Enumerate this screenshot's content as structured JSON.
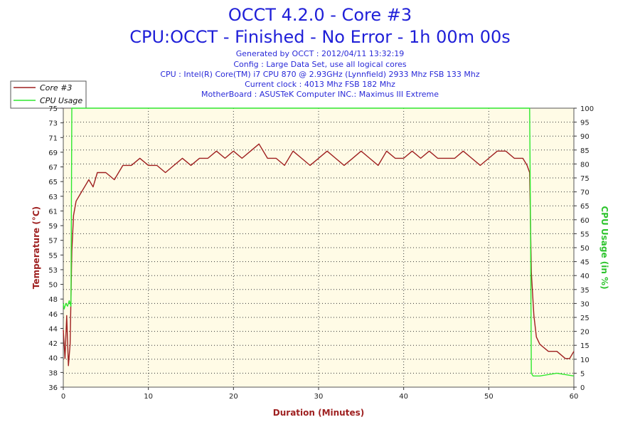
{
  "header": {
    "title": "OCCT 4.2.0 - Core #3",
    "subtitle": "CPU:OCCT - Finished - No Error - 1h 00m 00s",
    "info_lines": [
      "Generated by OCCT : 2012/04/11 13:32:19",
      "Config : Large Data Set, use all logical cores",
      "CPU : Intel(R) Core(TM) i7 CPU 870 @ 2.93GHz (Lynnfield) 2933 Mhz FSB 133 Mhz",
      "Current clock : 4013 Mhz FSB 182 Mhz",
      "MotherBoard : ASUSTeK Computer INC.: Maximus III Extreme"
    ]
  },
  "colors": {
    "temperature": "#9e1f1f",
    "usage": "#2ee82e",
    "plot_background": "#fffbe6",
    "title": "#1f1fd8"
  },
  "chart_data": {
    "type": "line",
    "xlabel": "Duration (Minutes)",
    "ylabel": "Temperature (°C)",
    "y2label": "CPU Usage (in %)",
    "xlim": [
      0,
      60
    ],
    "ylim": [
      36,
      75
    ],
    "y2lim": [
      0,
      100
    ],
    "x_ticks": [
      "0",
      "10",
      "20",
      "30",
      "40",
      "50",
      "60"
    ],
    "y_ticks": [
      "36",
      "38",
      "40",
      "42",
      "44",
      "46",
      "48",
      "50",
      "53",
      "55",
      "57",
      "59",
      "61",
      "63",
      "65",
      "67",
      "69",
      "71",
      "73",
      "75"
    ],
    "y2_ticks": [
      "0",
      "5",
      "10",
      "15",
      "20",
      "25",
      "30",
      "35",
      "40",
      "45",
      "50",
      "55",
      "60",
      "65",
      "70",
      "75",
      "80",
      "85",
      "90",
      "95",
      "100"
    ],
    "grid": true,
    "legend_position": "top-left",
    "series": [
      {
        "name": "Core #3",
        "axis": "left",
        "x": [
          0,
          0.2,
          0.4,
          0.6,
          0.8,
          1.0,
          1.2,
          1.5,
          2,
          2.5,
          3,
          3.5,
          4,
          5,
          6,
          7,
          8,
          9,
          10,
          11,
          12,
          13,
          14,
          15,
          16,
          17,
          18,
          19,
          20,
          21,
          22,
          23,
          24,
          25,
          26,
          27,
          28,
          29,
          30,
          31,
          32,
          33,
          34,
          35,
          36,
          37,
          38,
          39,
          40,
          41,
          42,
          43,
          44,
          45,
          46,
          47,
          48,
          49,
          50,
          51,
          52,
          53,
          54,
          54.5,
          54.8,
          55.0,
          55.3,
          55.6,
          56,
          57,
          58,
          59,
          59.5,
          60
        ],
        "y": [
          44,
          40,
          46,
          39,
          42,
          55,
          60,
          62,
          63,
          64,
          65,
          64,
          66,
          66,
          65,
          67,
          67,
          68,
          67,
          67,
          66,
          67,
          68,
          67,
          68,
          68,
          69,
          68,
          69,
          68,
          69,
          70,
          68,
          68,
          67,
          69,
          68,
          67,
          68,
          69,
          68,
          67,
          68,
          69,
          68,
          67,
          69,
          68,
          68,
          69,
          68,
          69,
          68,
          68,
          68,
          69,
          68,
          67,
          68,
          69,
          69,
          68,
          68,
          67,
          66,
          52,
          46,
          43,
          42,
          41,
          41,
          40,
          40,
          41
        ]
      },
      {
        "name": "CPU Usage",
        "axis": "right",
        "x": [
          0,
          0.1,
          0.3,
          0.5,
          0.7,
          0.9,
          1.0,
          1.1,
          1.2,
          30,
          54.5,
          54.8,
          54.9,
          55.0,
          55.2,
          56,
          58,
          60
        ],
        "y": [
          30,
          28,
          30,
          29,
          31,
          29,
          100,
          100,
          100,
          100,
          100,
          100,
          60,
          5,
          4,
          4,
          5,
          4
        ]
      }
    ]
  }
}
